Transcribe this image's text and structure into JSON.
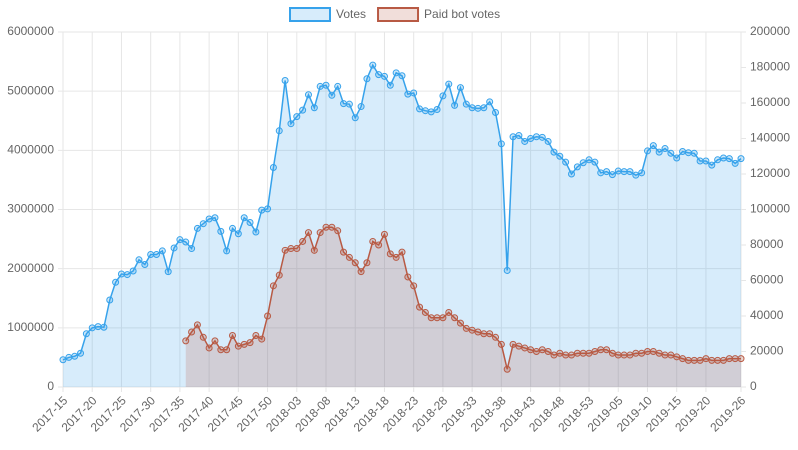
{
  "chart_data": {
    "type": "line",
    "categories": [
      "2017-15",
      null,
      null,
      null,
      null,
      "2017-20",
      null,
      null,
      null,
      null,
      "2017-25",
      null,
      null,
      null,
      null,
      "2017-30",
      null,
      null,
      null,
      null,
      "2017-35",
      null,
      null,
      null,
      null,
      "2017-40",
      null,
      null,
      null,
      null,
      "2017-45",
      null,
      null,
      null,
      null,
      "2017-50",
      null,
      null,
      null,
      null,
      "2018-03",
      null,
      null,
      null,
      null,
      "2018-08",
      null,
      null,
      null,
      null,
      "2018-13",
      null,
      null,
      null,
      null,
      "2018-18",
      null,
      null,
      null,
      null,
      "2018-23",
      null,
      null,
      null,
      null,
      "2018-28",
      null,
      null,
      null,
      null,
      "2018-33",
      null,
      null,
      null,
      null,
      "2018-38",
      null,
      null,
      null,
      null,
      "2018-43",
      null,
      null,
      null,
      null,
      "2018-48",
      null,
      null,
      null,
      null,
      "2018-53",
      null,
      null,
      null,
      null,
      "2019-05",
      null,
      null,
      null,
      null,
      "2019-10",
      null,
      null,
      null,
      null,
      "2019-15",
      null,
      null,
      null,
      null,
      "2019-20",
      null,
      null,
      null,
      null,
      null,
      "2019-26"
    ],
    "series": [
      {
        "name": "Votes",
        "color": "#36a2eb",
        "axis": "y",
        "values": [
          460000,
          500000,
          520000,
          570000,
          900000,
          1000000,
          1020000,
          1010000,
          1470000,
          1770000,
          1910000,
          1900000,
          1960000,
          2150000,
          2070000,
          2240000,
          2240000,
          2300000,
          1950000,
          2350000,
          2490000,
          2450000,
          2340000,
          2680000,
          2760000,
          2840000,
          2860000,
          2630000,
          2300000,
          2680000,
          2590000,
          2860000,
          2780000,
          2620000,
          2990000,
          3010000,
          3710000,
          4330000,
          5180000,
          4450000,
          4570000,
          4680000,
          4940000,
          4720000,
          5080000,
          5100000,
          4930000,
          5080000,
          4790000,
          4780000,
          4550000,
          4740000,
          5210000,
          5440000,
          5280000,
          5250000,
          5100000,
          5310000,
          5260000,
          4950000,
          4970000,
          4700000,
          4670000,
          4650000,
          4690000,
          4920000,
          5120000,
          4760000,
          5060000,
          4780000,
          4720000,
          4710000,
          4720000,
          4820000,
          4640000,
          4110000,
          1970000,
          4230000,
          4250000,
          4150000,
          4200000,
          4230000,
          4220000,
          4150000,
          3970000,
          3900000,
          3800000,
          3600000,
          3720000,
          3790000,
          3840000,
          3800000,
          3620000,
          3640000,
          3590000,
          3650000,
          3640000,
          3640000,
          3580000,
          3620000,
          3990000,
          4080000,
          3970000,
          4030000,
          3950000,
          3870000,
          3980000,
          3960000,
          3950000,
          3820000,
          3820000,
          3750000,
          3840000,
          3870000,
          3860000,
          3780000,
          3860000
        ]
      },
      {
        "name": "Paid bot votes",
        "color": "#b85a44",
        "axis": "y2",
        "values": [
          null,
          null,
          null,
          null,
          null,
          null,
          null,
          null,
          null,
          null,
          null,
          null,
          null,
          null,
          null,
          null,
          null,
          null,
          null,
          null,
          null,
          26000,
          31000,
          35000,
          28000,
          22000,
          26000,
          21000,
          21000,
          29000,
          23000,
          24000,
          25000,
          29000,
          27000,
          40000,
          57000,
          63000,
          77000,
          78000,
          78000,
          82000,
          87000,
          77000,
          87000,
          90000,
          90000,
          88000,
          76000,
          73000,
          70000,
          65000,
          70000,
          82000,
          80000,
          86000,
          75000,
          73000,
          76000,
          62000,
          57000,
          45000,
          42000,
          39000,
          39000,
          39000,
          42000,
          39000,
          36000,
          33000,
          32000,
          31000,
          30000,
          30000,
          28000,
          24000,
          10000,
          24000,
          23000,
          22000,
          21000,
          20000,
          21000,
          20000,
          18000,
          19000,
          18000,
          18000,
          19000,
          19000,
          19000,
          20000,
          21000,
          21000,
          19000,
          18000,
          18000,
          18000,
          19000,
          19000,
          20000,
          20000,
          19000,
          18000,
          18000,
          17000,
          16000,
          15000,
          15000,
          15000,
          16000,
          15000,
          15000,
          15000,
          16000,
          16000,
          16000
        ]
      }
    ],
    "ylim": [
      0,
      6000000
    ],
    "yticks": [
      0,
      1000000,
      2000000,
      3000000,
      4000000,
      5000000,
      6000000
    ],
    "y2lim": [
      0,
      200000
    ],
    "y2ticks": [
      0,
      20000,
      40000,
      60000,
      80000,
      100000,
      120000,
      140000,
      160000,
      180000,
      200000
    ],
    "grid": true,
    "legend": "top"
  }
}
